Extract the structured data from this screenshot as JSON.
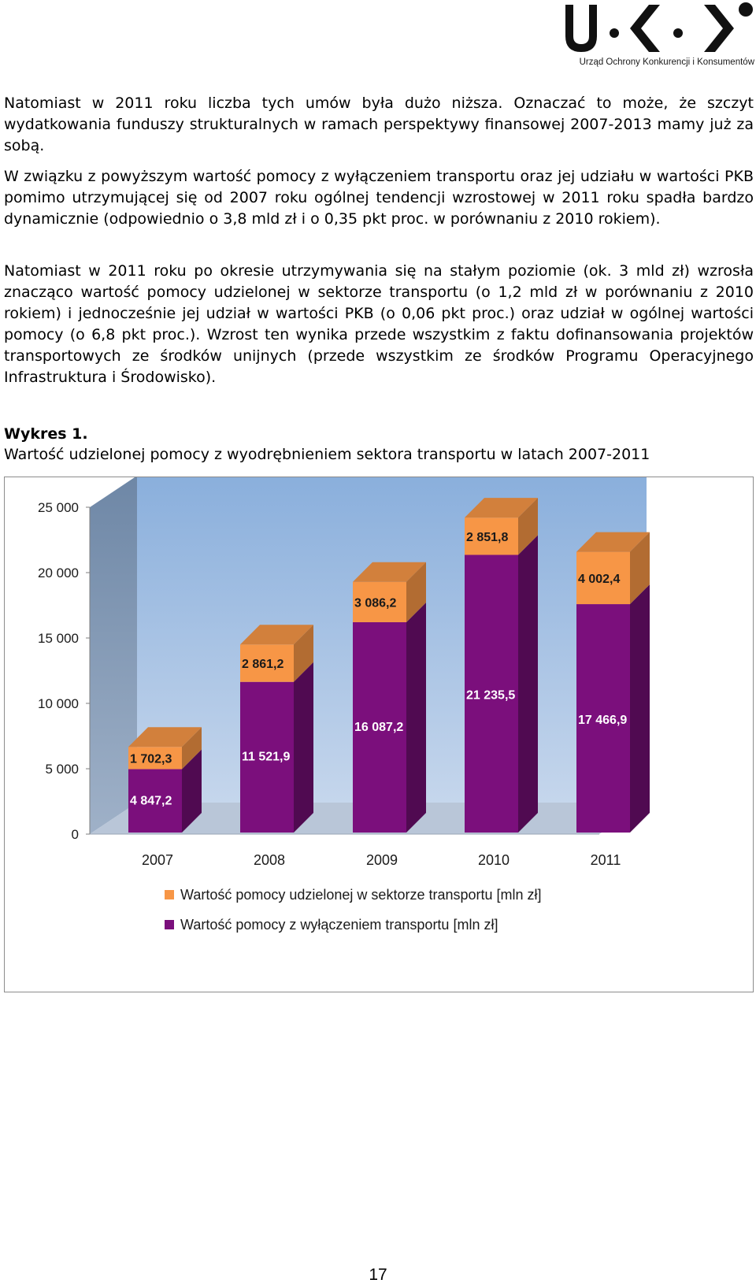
{
  "logo": {
    "text": "U•K•K",
    "caption": "Urząd Ochrony Konkurencji i Konsumentów"
  },
  "paragraphs": [
    "Natomiast w 2011 roku liczba tych umów była dużo niższa. Oznaczać to może, że szczyt wydatkowania funduszy strukturalnych w ramach perspektywy finansowej 2007-2013 mamy już za sobą.",
    "W związku z powyższym wartość pomocy z wyłączeniem transportu oraz jej udziału w wartości PKB pomimo utrzymującej się od 2007 roku ogólnej tendencji wzrostowej w 2011 roku spadła bardzo dynamicznie (odpowiednio o 3,8 mld zł i o 0,35 pkt proc. w porównaniu z 2010 rokiem).",
    "Natomiast w 2011 roku po okresie utrzymywania się na stałym poziomie (ok. 3 mld zł) wzrosła znacząco wartość pomocy udzielonej w sektorze transportu (o 1,2 mld zł w porównaniu z 2010 rokiem) i jednocześnie jej udział w wartości PKB (o 0,06 pkt proc.) oraz udział w ogólnej wartości pomocy (o 6,8 pkt proc.). Wzrost ten wynika przede wszystkim z faktu dofinansowania projektów transportowych ze środków unijnych (przede wszystkim ze środków Programu Operacyjnego Infrastruktura i Środowisko)."
  ],
  "figure": {
    "number": "Wykres 1.",
    "title": "Wartość udzielonej pomocy z wyodrębnieniem sektora transportu w latach 2007-2011"
  },
  "chart_data": {
    "type": "bar",
    "stacked": true,
    "style": "3d",
    "categories": [
      "2007",
      "2008",
      "2009",
      "2010",
      "2011"
    ],
    "series": [
      {
        "name": "Wartość pomocy z wyłączeniem transportu [mln zł]",
        "values": [
          4847.2,
          11521.9,
          16087.2,
          21235.5,
          17466.9
        ],
        "labels": [
          "4 847,2",
          "11 521,9",
          "16 087,2",
          "21 235,5",
          "17 466,9"
        ],
        "color": "#7b0f7c"
      },
      {
        "name": "Wartość pomocy udzielonej w sektorze transportu [mln zł]",
        "values": [
          1702.3,
          2861.2,
          3086.2,
          2851.8,
          4002.4
        ],
        "labels": [
          "1 702,3",
          "2 861,2",
          "3 086,2",
          "2 851,8",
          "4 002,4"
        ],
        "color": "#f79646"
      }
    ],
    "yticks": [
      0,
      5000,
      10000,
      15000,
      20000,
      25000
    ],
    "ytick_labels": [
      "0",
      "5 000",
      "10 000",
      "15 000",
      "20 000",
      "25 000"
    ],
    "ylim": [
      0,
      25000
    ],
    "legend_order": [
      1,
      0
    ],
    "legend_position": "bottom",
    "grid": false,
    "wall_color": "#9ab9de",
    "floor_color": "#b5c3d6"
  },
  "page_number": "17"
}
